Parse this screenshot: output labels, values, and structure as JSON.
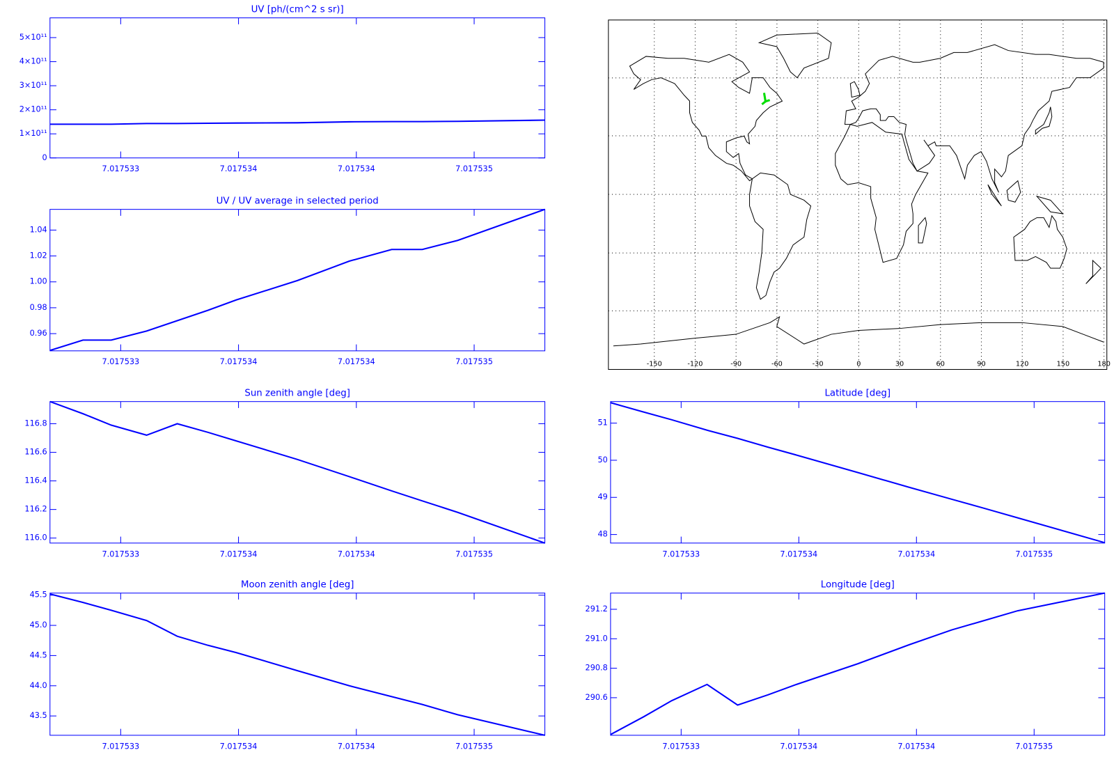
{
  "chart_data": [
    {
      "type": "line",
      "title": "UV [ph/(cm^2 s sr)]",
      "color": "#0000ff",
      "x": [
        7.0175327,
        7.01753284,
        7.01753296,
        7.01753311,
        7.01753324,
        7.01753337,
        7.01753349,
        7.01753375,
        7.01753397,
        7.01753415,
        7.01753428,
        7.01753443,
        7.0175348
      ],
      "values": [
        140000000000,
        140000000000,
        140000000000,
        143000000000,
        143000000000,
        144000000000,
        145000000000,
        146000000000,
        150000000000,
        151000000000,
        151000000000,
        152000000000,
        157000000000
      ],
      "xlim": [
        7.0175327,
        7.0175348
      ],
      "xticks": [
        {
          "value": 7.017533,
          "label": "7.017533"
        },
        {
          "value": 7.0175335,
          "label": "7.017534"
        },
        {
          "value": 7.017534,
          "label": "7.017534"
        },
        {
          "value": 7.0175345,
          "label": "7.017535"
        }
      ],
      "ylim": [
        0,
        582000000000
      ],
      "yticks": [
        0,
        {
          "value": 100000000000,
          "label": "1×10¹¹"
        },
        {
          "value": 200000000000,
          "label": "2×10¹¹"
        },
        {
          "value": 300000000000,
          "label": "3×10¹¹"
        },
        {
          "value": 400000000000,
          "label": "4×10¹¹"
        },
        {
          "value": 500000000000,
          "label": "5×10¹¹"
        }
      ]
    },
    {
      "type": "line",
      "title": "UV / UV average in selected period",
      "color": "#0000ff",
      "x": [
        7.0175327,
        7.01753284,
        7.01753296,
        7.01753311,
        7.01753324,
        7.01753337,
        7.01753349,
        7.01753375,
        7.01753397,
        7.01753415,
        7.01753428,
        7.01753443,
        7.0175348
      ],
      "values": [
        0.947,
        0.955,
        0.955,
        0.962,
        0.97,
        0.978,
        0.986,
        1.001,
        1.016,
        1.025,
        1.025,
        1.032,
        1.056
      ],
      "xlim": [
        7.0175327,
        7.0175348
      ],
      "xticks": [
        {
          "value": 7.017533,
          "label": "7.017533"
        },
        {
          "value": 7.0175335,
          "label": "7.017534"
        },
        {
          "value": 7.017534,
          "label": "7.017534"
        },
        {
          "value": 7.0175345,
          "label": "7.017535"
        }
      ],
      "ylim": [
        0.9467,
        1.056
      ],
      "yticks": [
        0.96,
        0.98,
        {
          "value": 1,
          "label": "1.00"
        },
        1.02,
        1.04
      ]
    },
    {
      "type": "map",
      "xlim": [
        -180,
        180
      ],
      "xticks": [
        -150,
        -120,
        -90,
        -60,
        -30,
        0,
        30,
        60,
        90,
        120,
        150,
        180
      ],
      "grid": true
    },
    {
      "type": "line",
      "title": "Sun zenith angle [deg]",
      "color": "#0000ff",
      "x": [
        7.0175327,
        7.01753284,
        7.01753296,
        7.01753311,
        7.01753324,
        7.01753337,
        7.01753349,
        7.01753375,
        7.01753397,
        7.01753415,
        7.01753428,
        7.01753443,
        7.0175348
      ],
      "values": [
        116.955,
        116.87,
        116.79,
        116.72,
        116.8,
        116.74,
        116.68,
        116.55,
        116.43,
        116.33,
        116.26,
        116.18,
        115.965
      ],
      "xlim": [
        7.0175327,
        7.0175348
      ],
      "xticks": [
        {
          "value": 7.017533,
          "label": "7.017533"
        },
        {
          "value": 7.0175335,
          "label": "7.017534"
        },
        {
          "value": 7.017534,
          "label": "7.017534"
        },
        {
          "value": 7.0175345,
          "label": "7.017535"
        }
      ],
      "ylim": [
        115.965,
        116.955
      ],
      "yticks": [
        {
          "value": 116,
          "label": "116.0"
        },
        116.2,
        116.4,
        116.6,
        116.8
      ]
    },
    {
      "type": "line",
      "title": "Latitude [deg]",
      "color": "#0000ff",
      "x": [
        7.0175327,
        7.01753284,
        7.01753296,
        7.01753311,
        7.01753324,
        7.01753337,
        7.01753349,
        7.01753375,
        7.01753397,
        7.01753415,
        7.01753428,
        7.01753443,
        7.0175348
      ],
      "values": [
        51.55,
        51.3,
        51.09,
        50.81,
        50.59,
        50.35,
        50.14,
        49.67,
        49.27,
        48.95,
        48.72,
        48.45,
        47.78
      ],
      "xlim": [
        7.0175327,
        7.0175348
      ],
      "xticks": [
        {
          "value": 7.017533,
          "label": "7.017533"
        },
        {
          "value": 7.0175335,
          "label": "7.017534"
        },
        {
          "value": 7.017534,
          "label": "7.017534"
        },
        {
          "value": 7.0175345,
          "label": "7.017535"
        }
      ],
      "ylim": [
        47.77,
        51.58
      ],
      "yticks": [
        48,
        49,
        50,
        51
      ]
    },
    {
      "type": "line",
      "title": "Moon zenith angle [deg]",
      "color": "#0000ff",
      "x": [
        7.0175327,
        7.01753284,
        7.01753296,
        7.01753311,
        7.01753324,
        7.01753337,
        7.01753349,
        7.01753375,
        7.01753397,
        7.01753415,
        7.01753428,
        7.01753443,
        7.0175348
      ],
      "values": [
        45.52,
        45.38,
        45.25,
        45.08,
        44.82,
        44.67,
        44.55,
        44.25,
        44.0,
        43.82,
        43.69,
        43.52,
        43.18
      ],
      "xlim": [
        7.0175327,
        7.0175348
      ],
      "xticks": [
        {
          "value": 7.017533,
          "label": "7.017533"
        },
        {
          "value": 7.0175335,
          "label": "7.017534"
        },
        {
          "value": 7.017534,
          "label": "7.017534"
        },
        {
          "value": 7.0175345,
          "label": "7.017535"
        }
      ],
      "ylim": [
        43.18,
        45.535
      ],
      "yticks": [
        43.5,
        {
          "value": 44,
          "label": "44.0"
        },
        44.5,
        {
          "value": 45,
          "label": "45.0"
        },
        45.5
      ]
    },
    {
      "type": "line",
      "title": "Longitude [deg]",
      "color": "#0000ff",
      "x": [
        7.0175327,
        7.01753284,
        7.01753296,
        7.01753311,
        7.01753324,
        7.01753337,
        7.01753349,
        7.01753375,
        7.01753397,
        7.01753415,
        7.01753428,
        7.01753443,
        7.0175348
      ],
      "values": [
        290.35,
        290.47,
        290.58,
        290.69,
        290.55,
        290.62,
        290.69,
        290.83,
        290.96,
        291.06,
        291.12,
        291.19,
        291.31
      ],
      "xlim": [
        7.0175327,
        7.0175348
      ],
      "xticks": [
        {
          "value": 7.017533,
          "label": "7.017533"
        },
        {
          "value": 7.0175335,
          "label": "7.017534"
        },
        {
          "value": 7.017534,
          "label": "7.017534"
        },
        {
          "value": 7.0175345,
          "label": "7.017535"
        }
      ],
      "ylim": [
        290.345,
        291.31
      ],
      "yticks": [
        290.6,
        290.8,
        {
          "value": 291,
          "label": "291.0"
        },
        291.2
      ]
    }
  ]
}
